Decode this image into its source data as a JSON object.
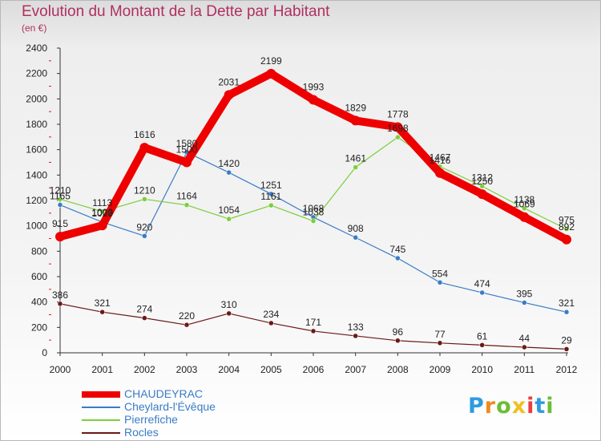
{
  "title": "Evolution du Montant de la Dette par Habitant",
  "unit": "(en €)",
  "logo": {
    "text": "Proxiti",
    "letter_colors": [
      "#2e9be0",
      "#f08a20",
      "#6cbd35",
      "#f0c020",
      "#e83e3e",
      "#2e9be0",
      "#6cbd35"
    ]
  },
  "chart_data": {
    "type": "line",
    "title": "Evolution du Montant de la Dette par Habitant",
    "ylabel": "(en €)",
    "xlabel": "",
    "ylim": [
      0,
      2400
    ],
    "yticks": [
      0,
      200,
      400,
      600,
      800,
      1000,
      1200,
      1400,
      1600,
      1800,
      2000,
      2200,
      2400
    ],
    "x": [
      "2000",
      "2001",
      "2002",
      "2003",
      "2004",
      "2005",
      "2006",
      "2007",
      "2008",
      "2009",
      "2010",
      "2011",
      "2012"
    ],
    "grid": false,
    "legend": "bottom-left",
    "series": [
      {
        "name": "CHAUDEYRAC",
        "color": "#ee0000",
        "values": [
          915,
          1003,
          1616,
          1500,
          2031,
          2199,
          1993,
          1829,
          1778,
          1416,
          1250,
          1069,
          892
        ],
        "labels": [
          "915",
          "1003",
          "1616",
          "1500",
          "2031",
          "2199",
          "1993",
          "1829",
          "1778",
          "1416",
          "1250",
          "1069",
          "892"
        ]
      },
      {
        "name": "Cheylard-l'Évêque",
        "color": "#3a7cc6",
        "values": [
          1165,
          1029,
          920,
          1580,
          1420,
          1251,
          1068,
          908,
          745,
          554,
          474,
          395,
          321
        ],
        "labels": [
          "1165",
          "1029",
          "920",
          "1580",
          "1420",
          "1251",
          "1068",
          "908",
          "745",
          "554",
          "474",
          "395",
          "321"
        ]
      },
      {
        "name": "Pierrefiche",
        "color": "#7ccf3a",
        "values": [
          1210,
          1113,
          1210,
          1164,
          1054,
          1161,
          1038,
          1461,
          1698,
          1467,
          1312,
          1138,
          975
        ],
        "labels": [
          "1210",
          "1113",
          "1210",
          "1164",
          "1054",
          "1161",
          "1038",
          "1461",
          "1698",
          "1467",
          "1312",
          "1138",
          "975"
        ]
      },
      {
        "name": "Rocles",
        "color": "#6b1818",
        "values": [
          386,
          321,
          274,
          220,
          310,
          234,
          171,
          133,
          96,
          77,
          61,
          44,
          29
        ],
        "labels": [
          "386",
          "321",
          "274",
          "220",
          "310",
          "234",
          "171",
          "133",
          "96",
          "77",
          "61",
          "44",
          "29"
        ]
      }
    ]
  }
}
